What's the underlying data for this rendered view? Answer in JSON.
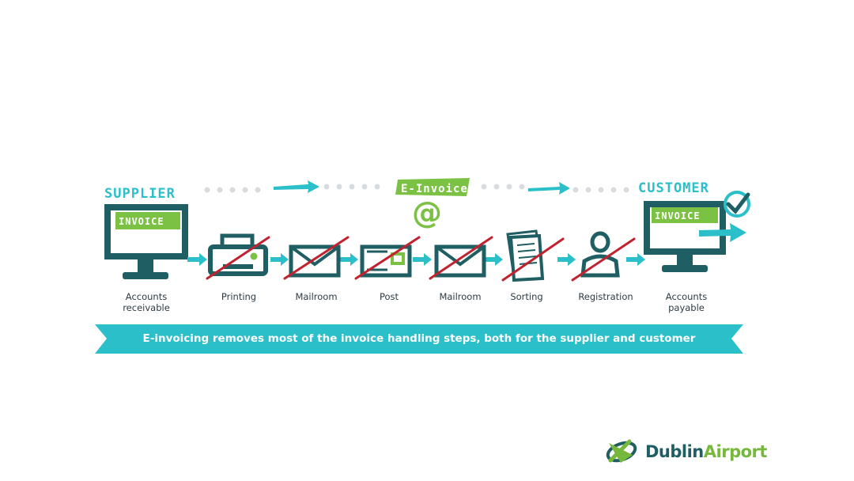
{
  "supplier_label": "SUPPLIER",
  "customer_label": "CUSTOMER",
  "einvoice_label": "E-Invoice",
  "at_symbol": "@",
  "invoice_label": "INVOICE",
  "steps": [
    {
      "label": "Accounts receivable",
      "line1": "Accounts",
      "line2": "receivable",
      "icon": "computer-monitor-icon",
      "crossed_out": false
    },
    {
      "label": "Printing",
      "icon": "printer-icon",
      "crossed_out": true
    },
    {
      "label": "Mailroom",
      "icon": "envelope-icon",
      "crossed_out": true
    },
    {
      "label": "Post",
      "icon": "postcard-icon",
      "crossed_out": true
    },
    {
      "label": "Mailroom",
      "icon": "envelope-icon",
      "crossed_out": true
    },
    {
      "label": "Sorting",
      "icon": "documents-icon",
      "crossed_out": true
    },
    {
      "label": "Registration",
      "icon": "person-icon",
      "crossed_out": true
    },
    {
      "label": "Accounts payable",
      "line1": "Accounts",
      "line2": "payable",
      "icon": "computer-monitor-icon",
      "crossed_out": false
    }
  ],
  "banner_text": "E-invoicing removes most of the invoice handling steps, both for the supplier and customer",
  "logo": {
    "part1": "Dublin",
    "part2": "Airport",
    "icon": "dublin-airport-logo-icon"
  },
  "colors": {
    "teal": "#2abfc9",
    "dark_teal": "#1f5e62",
    "green": "#7bc143",
    "red_cross": "#c0232f",
    "dots": "#d9dcde"
  }
}
